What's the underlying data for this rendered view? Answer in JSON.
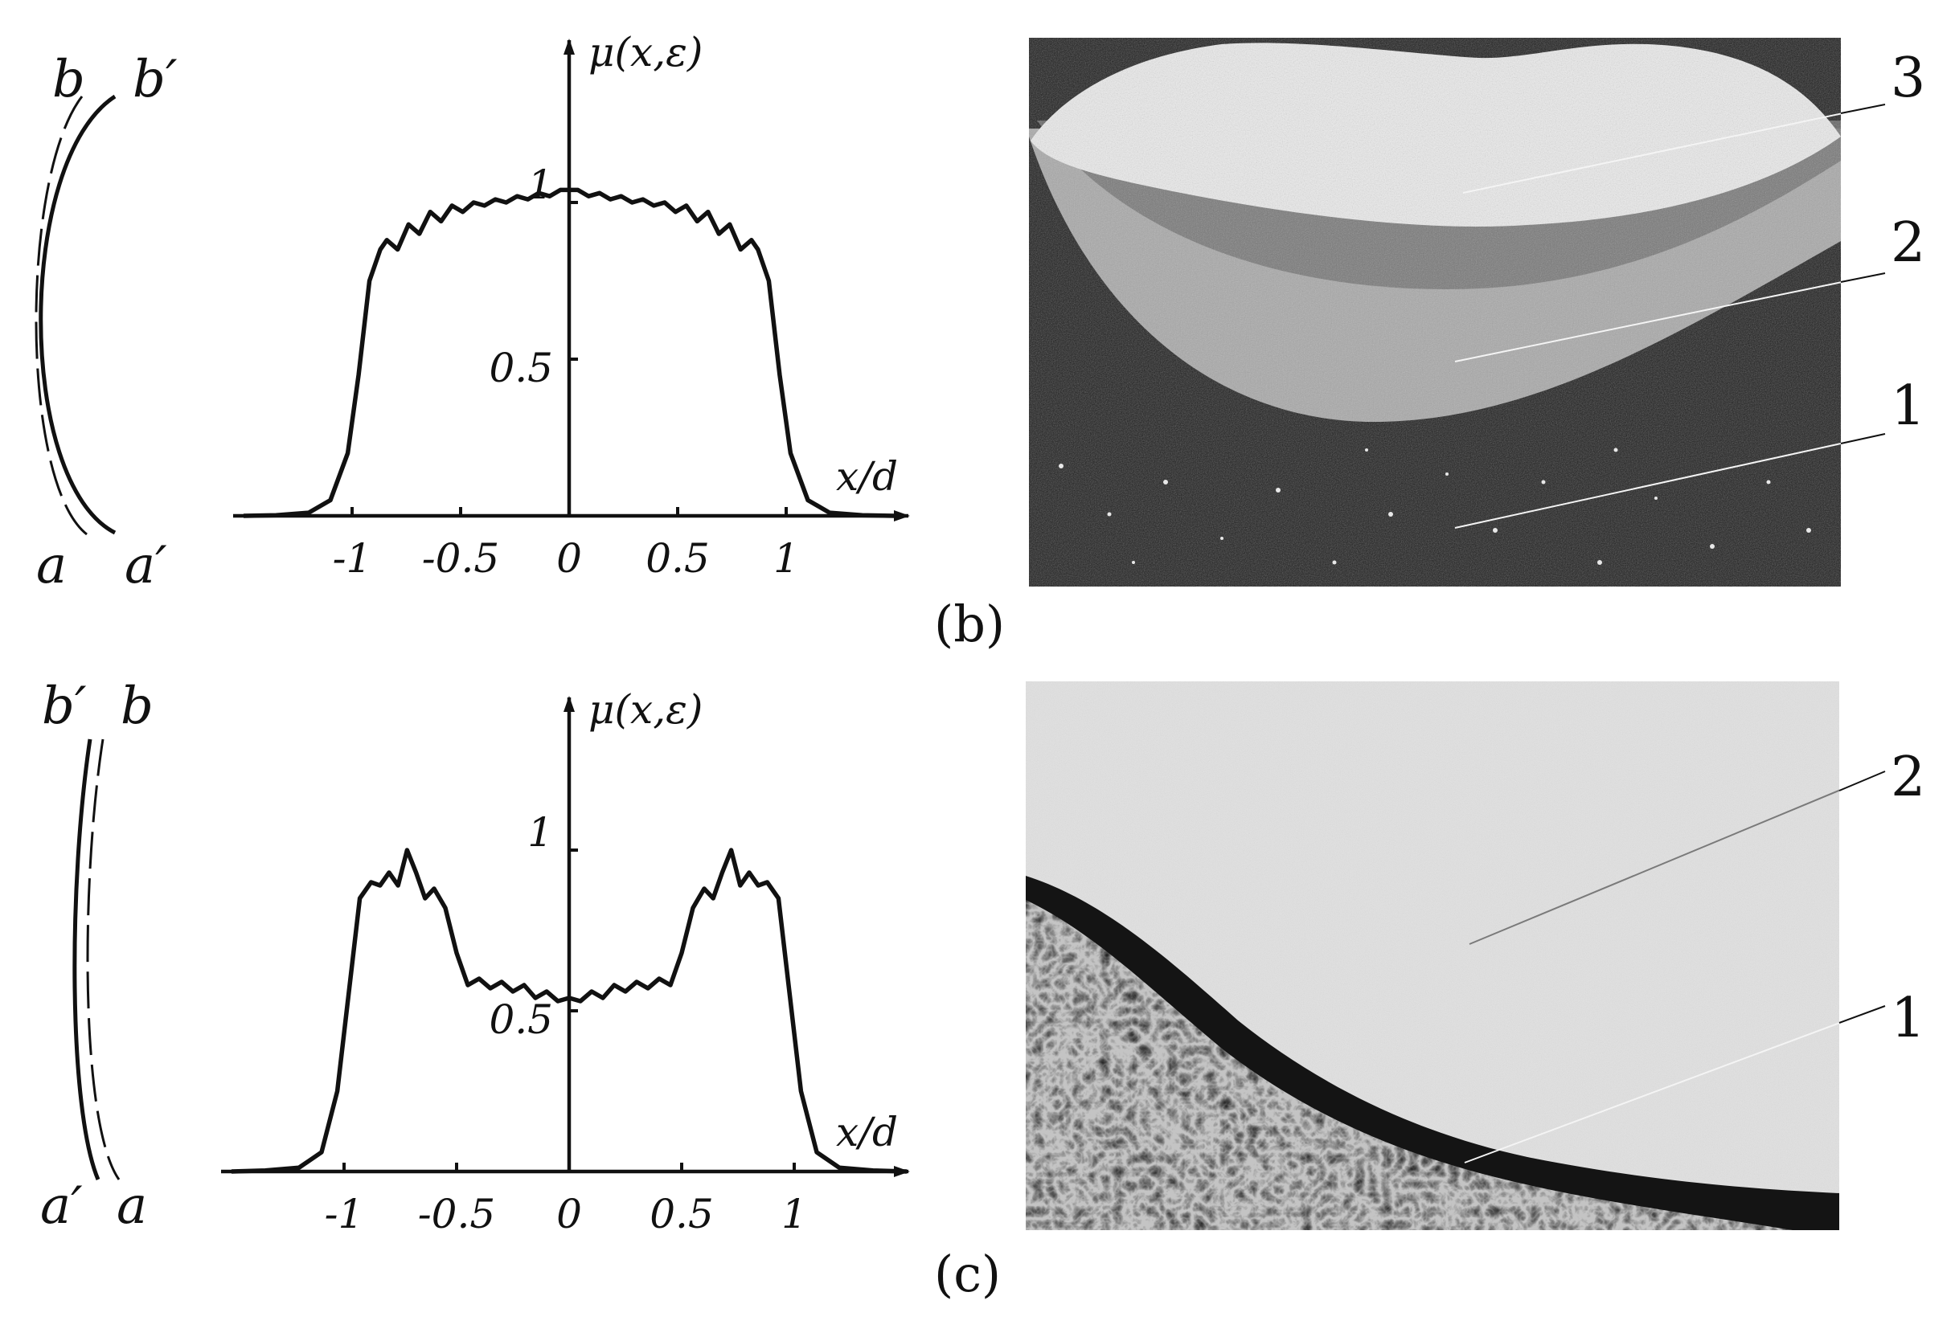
{
  "chart_data": [
    {
      "type": "line",
      "panel": "top-left",
      "ylabel": "μ(x,ε)",
      "xlabel": "x/d",
      "xlim": [
        -1.55,
        1.45
      ],
      "ylim": [
        0,
        1.1
      ],
      "x_tick_labels": [
        {
          "text": "-1",
          "value": -1
        },
        {
          "text": "-0.5",
          "value": -0.5
        },
        {
          "text": "0",
          "value": 0
        },
        {
          "text": "0.5",
          "value": 0.5
        },
        {
          "text": "1",
          "value": 1
        }
      ],
      "y_tick_labels": [
        {
          "text": "0.5",
          "value": 0.5
        },
        {
          "text": "1",
          "value": 1
        }
      ],
      "series": [
        {
          "x": [
            -1.5,
            -1.35,
            -1.2,
            -1.1,
            -1.02,
            -0.97,
            -0.92,
            -0.87,
            -0.84,
            -0.79,
            -0.74,
            -0.69,
            -0.64,
            -0.59,
            -0.54,
            -0.49,
            -0.44,
            -0.39,
            -0.34,
            -0.29,
            -0.24,
            -0.19,
            -0.14,
            -0.09,
            -0.04,
            0,
            0.04,
            0.09,
            0.14,
            0.19,
            0.24,
            0.29,
            0.34,
            0.39,
            0.44,
            0.49,
            0.54,
            0.59,
            0.64,
            0.69,
            0.74,
            0.79,
            0.84,
            0.87,
            0.92,
            0.97,
            1.02,
            1.1,
            1.2,
            1.35,
            1.5
          ],
          "y": [
            0,
            0.002,
            0.01,
            0.05,
            0.2,
            0.45,
            0.75,
            0.85,
            0.88,
            0.85,
            0.93,
            0.9,
            0.97,
            0.94,
            0.99,
            0.97,
            1.0,
            0.99,
            1.01,
            1.0,
            1.02,
            1.01,
            1.03,
            1.02,
            1.04,
            1.04,
            1.04,
            1.02,
            1.03,
            1.01,
            1.02,
            1.0,
            1.01,
            0.99,
            1.0,
            0.97,
            0.99,
            0.94,
            0.97,
            0.9,
            0.93,
            0.85,
            0.88,
            0.85,
            0.75,
            0.45,
            0.2,
            0.05,
            0.01,
            0.002,
            0
          ]
        }
      ]
    },
    {
      "type": "line",
      "panel": "bottom-left",
      "ylabel": "μ(x,ε)",
      "xlabel": "x/d",
      "xlim": [
        -1.55,
        1.45
      ],
      "ylim": [
        0,
        1.1
      ],
      "x_tick_labels": [
        {
          "text": "-1",
          "value": -1
        },
        {
          "text": "-0.5",
          "value": -0.5
        },
        {
          "text": "0",
          "value": 0
        },
        {
          "text": "0.5",
          "value": 0.5
        },
        {
          "text": "1",
          "value": 1
        }
      ],
      "y_tick_labels": [
        {
          "text": "0.5",
          "value": 0.5
        },
        {
          "text": "1",
          "value": 1
        }
      ],
      "series": [
        {
          "x": [
            -1.5,
            -1.35,
            -1.2,
            -1.1,
            -1.03,
            -0.98,
            -0.93,
            -0.88,
            -0.84,
            -0.8,
            -0.76,
            -0.72,
            -0.68,
            -0.64,
            -0.6,
            -0.55,
            -0.5,
            -0.45,
            -0.4,
            -0.35,
            -0.3,
            -0.25,
            -0.2,
            -0.15,
            -0.1,
            -0.05,
            0,
            0.05,
            0.1,
            0.15,
            0.2,
            0.25,
            0.3,
            0.35,
            0.4,
            0.45,
            0.5,
            0.55,
            0.6,
            0.64,
            0.68,
            0.72,
            0.76,
            0.8,
            0.84,
            0.88,
            0.93,
            0.98,
            1.03,
            1.1,
            1.2,
            1.35,
            1.5
          ],
          "y": [
            0,
            0.003,
            0.012,
            0.06,
            0.25,
            0.55,
            0.85,
            0.9,
            0.89,
            0.93,
            0.89,
            1.0,
            0.93,
            0.85,
            0.88,
            0.82,
            0.68,
            0.58,
            0.6,
            0.57,
            0.59,
            0.56,
            0.58,
            0.54,
            0.56,
            0.53,
            0.54,
            0.53,
            0.56,
            0.54,
            0.58,
            0.56,
            0.59,
            0.57,
            0.6,
            0.58,
            0.68,
            0.82,
            0.88,
            0.85,
            0.93,
            1.0,
            0.89,
            0.93,
            0.89,
            0.9,
            0.85,
            0.55,
            0.25,
            0.06,
            0.012,
            0.003,
            0
          ]
        }
      ]
    }
  ],
  "side_sketches": [
    {
      "top_labels": [
        "b",
        "b′"
      ],
      "bottom_labels": [
        "a",
        "a′"
      ]
    },
    {
      "top_labels": [
        "b′",
        "b"
      ],
      "bottom_labels": [
        "a′",
        "a"
      ]
    }
  ],
  "photo_b": {
    "caption": "(b)",
    "callouts": [
      "3",
      "2",
      "1"
    ]
  },
  "photo_c": {
    "caption": "(c)",
    "callouts": [
      "2",
      "1"
    ]
  }
}
